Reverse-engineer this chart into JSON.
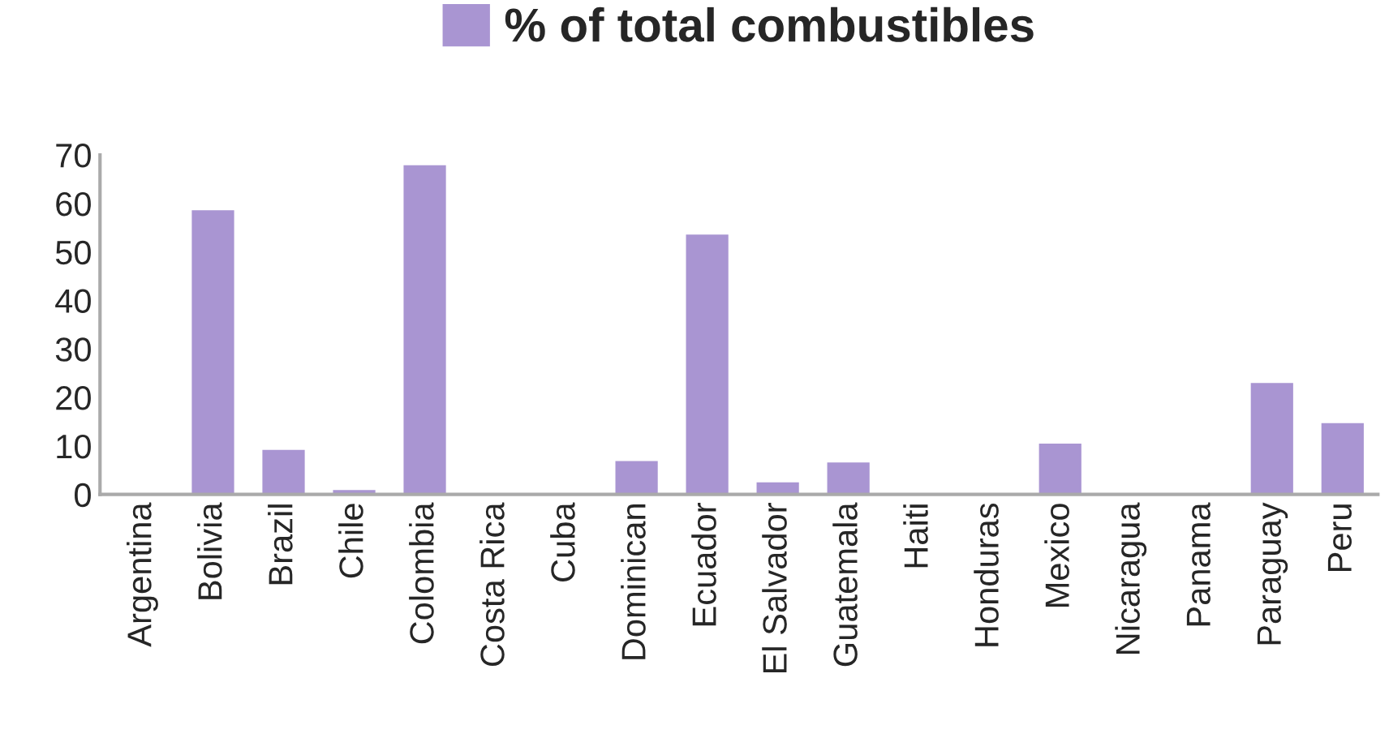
{
  "chart_data": {
    "type": "bar",
    "categories": [
      "Argentina",
      "Bolivia",
      "Brazil",
      "Chile",
      "Colombia",
      "Costa Rica",
      "Cuba",
      "Dominican",
      "Ecuador",
      "El Salvador",
      "Guatemala",
      "Haiti",
      "Honduras",
      "Mexico",
      "Nicaragua",
      "Panama",
      "Paraguay",
      "Peru"
    ],
    "series": [
      {
        "name": "% of total combustibles",
        "color": "#a995d2",
        "values": [
          0,
          58.6,
          9.2,
          0.9,
          67.9,
          0,
          0,
          6.9,
          53.6,
          2.5,
          6.6,
          0,
          0,
          10.5,
          0.2,
          0.2,
          23,
          14.7
        ]
      }
    ],
    "ylim": [
      0,
      70
    ],
    "yticks": [
      0,
      10,
      20,
      30,
      40,
      50,
      60,
      70
    ],
    "grid": false,
    "legend": "top"
  }
}
